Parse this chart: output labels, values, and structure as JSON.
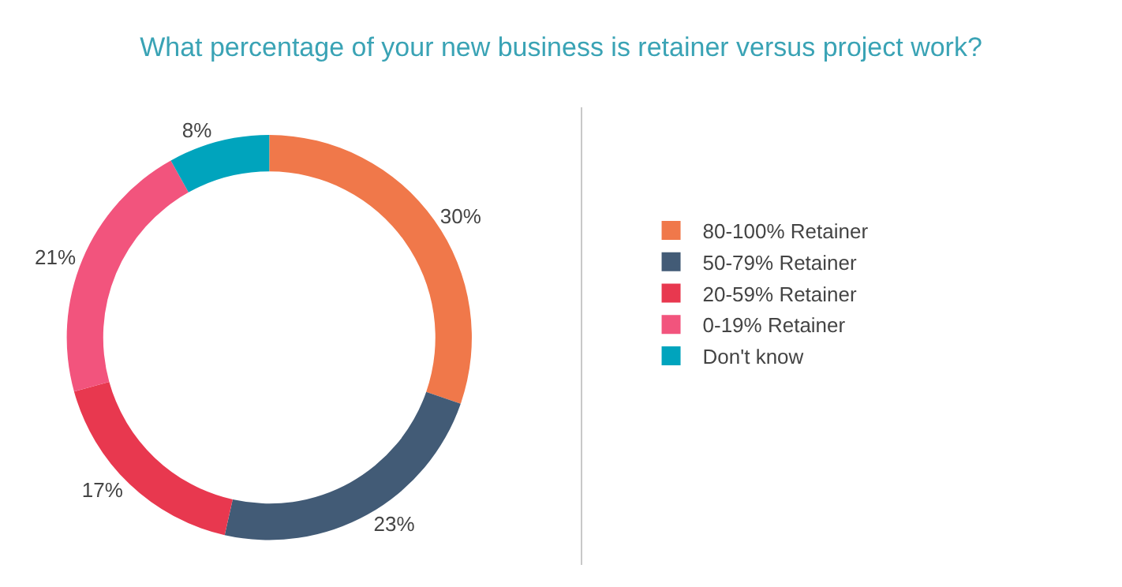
{
  "chart_data": {
    "type": "donut",
    "title": "What percentage of your new business is retainer versus project work?",
    "categories": [
      "80-100% Retainer",
      "50-79% Retainer",
      "20-59% Retainer",
      "0-19% Retainer",
      "Don't know"
    ],
    "values": [
      30,
      23,
      17,
      21,
      8
    ],
    "colors": [
      "#f0784a",
      "#425b76",
      "#e8384f",
      "#f2547d",
      "#00a4bd"
    ],
    "value_labels": [
      "30%",
      "23%",
      "17%",
      "21%",
      "8%"
    ],
    "legend": "right"
  }
}
